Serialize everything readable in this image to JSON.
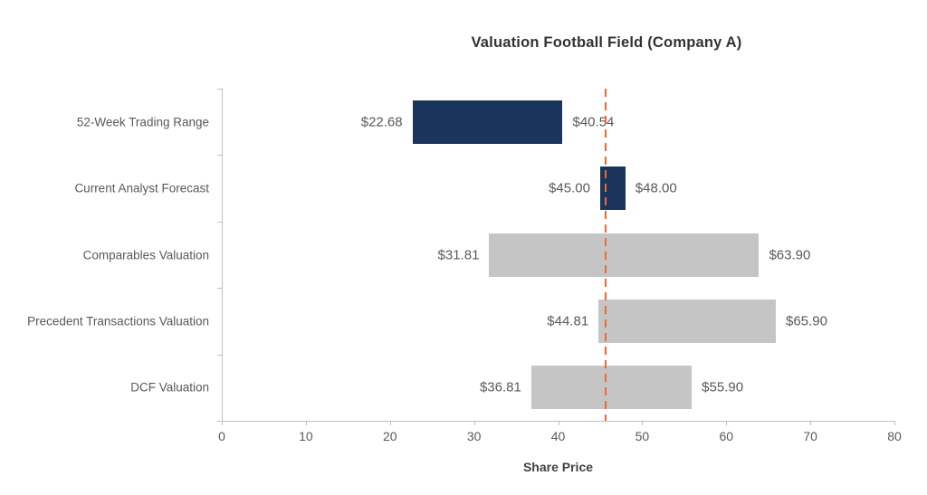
{
  "chart": {
    "title": "Valuation Football Field (Company A)",
    "x_axis_title": "Share Price"
  },
  "chart_data": {
    "type": "bar",
    "subtype": "horizontal-floating-range",
    "title": "Valuation Football Field (Company A)",
    "xlabel": "Share Price",
    "ylabel": "",
    "xlim": [
      0,
      80
    ],
    "x_ticks": [
      0,
      10,
      20,
      30,
      40,
      50,
      60,
      70,
      80
    ],
    "grid": false,
    "legend": "none",
    "categories": [
      "52-Week Trading Range",
      "Current Analyst Forecast",
      "Comparables Valuation",
      "Precedent Transactions Valuation",
      "DCF Valuation"
    ],
    "rows": [
      {
        "category": "52-Week Trading Range",
        "low": 22.68,
        "high": 40.54,
        "low_label": "$22.68",
        "high_label": "$40.54",
        "color": "#1b345c"
      },
      {
        "category": "Current Analyst Forecast",
        "low": 45.0,
        "high": 48.0,
        "low_label": "$45.00",
        "high_label": "$48.00",
        "color": "#1b345c"
      },
      {
        "category": "Comparables Valuation",
        "low": 31.81,
        "high": 63.9,
        "low_label": "$31.81",
        "high_label": "$63.90",
        "color": "#c5c5c5"
      },
      {
        "category": "Precedent Transactions Valuation",
        "low": 44.81,
        "high": 65.9,
        "low_label": "$44.81",
        "high_label": "$65.90",
        "color": "#c5c5c5"
      },
      {
        "category": "DCF Valuation",
        "low": 36.81,
        "high": 55.9,
        "low_label": "$36.81",
        "high_label": "$55.90",
        "color": "#c5c5c5"
      }
    ],
    "reference_line": {
      "value": 45.6,
      "style": "dashed",
      "color": "#ed6a31"
    },
    "colors": {
      "navy_bar": "#1b345c",
      "gray_bar": "#c5c5c5",
      "reference_orange": "#ed6a31",
      "axis_line": "#bfbfbf",
      "text": "#595959",
      "title_text": "#333333"
    }
  }
}
